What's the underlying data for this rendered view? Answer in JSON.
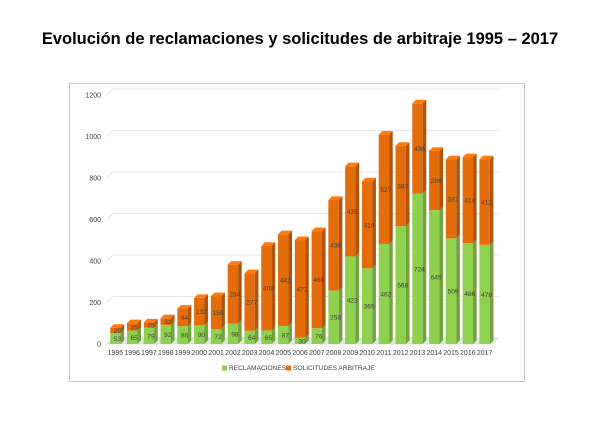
{
  "chart_data": {
    "type": "bar",
    "stacked": true,
    "title": "Evolución de reclamaciones y solicitudes de arbitraje 1995 – 2017",
    "categories": [
      "1995",
      "1996",
      "1997",
      "1998",
      "1999",
      "2000",
      "2001",
      "2002",
      "2003",
      "2004",
      "2005",
      "2006",
      "2007",
      "2008",
      "2009",
      "2010",
      "2011",
      "2012",
      "2013",
      "2014",
      "2015",
      "2016",
      "2017"
    ],
    "series": [
      {
        "name": "RECLAMACIONES",
        "color": "#8fd14f",
        "values": [
          53,
          65,
          79,
          92,
          86,
          90,
          72,
          98,
          64,
          65,
          87,
          30,
          76,
          258,
          422,
          365,
          482,
          568,
          724,
          645,
          509,
          486,
          478
        ]
      },
      {
        "name": "SOLICITUDES ARBITRAJE",
        "color": "#e46c0a",
        "values": [
          25,
          35,
          25,
          32,
          84,
          132,
          159,
          284,
          277,
          408,
          442,
          471,
          468,
          436,
          435,
          419,
          527,
          387,
          436,
          286,
          381,
          414,
          412
        ]
      }
    ],
    "ylim": [
      0,
      1200
    ],
    "yticks": [
      0,
      200,
      400,
      600,
      800,
      1000,
      1200
    ],
    "grid": true,
    "legend_position": "bottom"
  }
}
